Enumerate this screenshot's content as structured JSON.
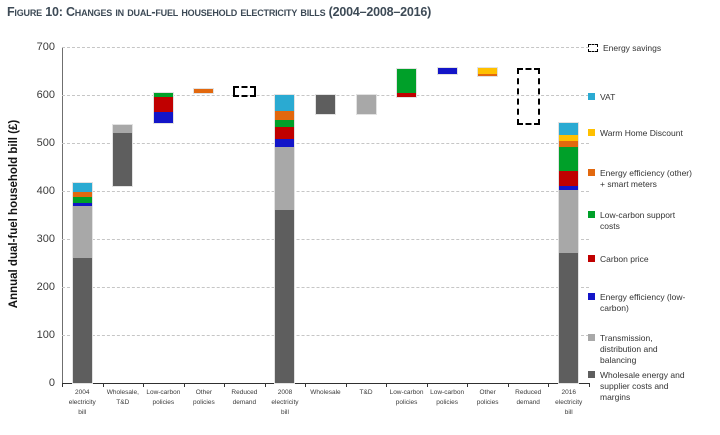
{
  "chart_data": {
    "type": "bar",
    "variant": "stacked-waterfall",
    "title": "Figure 10: Changes in dual-fuel household electricity bills (2004–2008–2016)",
    "ylabel": "Annual dual-fuel household bill (£)",
    "ylim": [
      0,
      700
    ],
    "yticks": [
      0,
      100,
      200,
      300,
      400,
      500,
      600,
      700
    ],
    "grid": "horizontal-dashed",
    "legend_position": "right",
    "colors": {
      "wholesale": "#5e5e5e",
      "transmission": "#a8a8a8",
      "ee_low_carbon": "#1315c8",
      "carbon_price": "#c00000",
      "low_carbon_support": "#00a029",
      "ee_other": "#e2680e",
      "warm_home_discount": "#ffc000",
      "vat": "#2aaad2"
    },
    "bars": [
      {
        "label_lines": [
          "2004",
          "electricity",
          "bill"
        ],
        "segments": [
          {
            "key": "wholesale",
            "from": 0,
            "to": 260
          },
          {
            "key": "transmission",
            "from": 260,
            "to": 369
          },
          {
            "key": "ee_low_carbon",
            "from": 369,
            "to": 374
          },
          {
            "key": "low_carbon_support",
            "from": 374,
            "to": 387
          },
          {
            "key": "ee_other",
            "from": 387,
            "to": 397
          },
          {
            "key": "vat",
            "from": 397,
            "to": 416
          }
        ]
      },
      {
        "label_lines": [
          "Wholesale,",
          "T&D"
        ],
        "segments": [
          {
            "key": "wholesale",
            "from": 410,
            "to": 520
          },
          {
            "key": "transmission",
            "from": 520,
            "to": 538
          }
        ]
      },
      {
        "label_lines": [
          "Low-carbon",
          "policies"
        ],
        "segments": [
          {
            "key": "ee_low_carbon",
            "from": 542,
            "to": 565
          },
          {
            "key": "carbon_price",
            "from": 565,
            "to": 595
          },
          {
            "key": "low_carbon_support",
            "from": 595,
            "to": 604
          }
        ]
      },
      {
        "label_lines": [
          "Other",
          "policies"
        ],
        "segments": [
          {
            "key": "ee_other",
            "from": 604,
            "to": 613
          }
        ]
      },
      {
        "label_lines": [
          "Reduced",
          "demand"
        ],
        "dashed": true,
        "from": 600,
        "to": 615
      },
      {
        "label_lines": [
          "2008",
          "electricity",
          "bill"
        ],
        "segments": [
          {
            "key": "wholesale",
            "from": 0,
            "to": 360
          },
          {
            "key": "transmission",
            "from": 360,
            "to": 492
          },
          {
            "key": "ee_low_carbon",
            "from": 492,
            "to": 508
          },
          {
            "key": "carbon_price",
            "from": 508,
            "to": 533
          },
          {
            "key": "low_carbon_support",
            "from": 533,
            "to": 548
          },
          {
            "key": "ee_other",
            "from": 548,
            "to": 567
          },
          {
            "key": "vat",
            "from": 567,
            "to": 600
          }
        ]
      },
      {
        "label_lines": [
          "Wholesale"
        ],
        "segments": [
          {
            "key": "wholesale",
            "from": 560,
            "to": 599
          }
        ]
      },
      {
        "label_lines": [
          "T&D"
        ],
        "segments": [
          {
            "key": "transmission",
            "from": 560,
            "to": 600
          }
        ]
      },
      {
        "label_lines": [
          "Low-carbon",
          "policies"
        ],
        "segments": [
          {
            "key": "carbon_price",
            "from": 595,
            "to": 604
          },
          {
            "key": "low_carbon_support",
            "from": 604,
            "to": 654
          }
        ]
      },
      {
        "label_lines": [
          "Low-carbon",
          "policies"
        ],
        "segments": [
          {
            "key": "ee_low_carbon",
            "from": 643,
            "to": 656
          }
        ]
      },
      {
        "label_lines": [
          "Other",
          "policies"
        ],
        "segments": [
          {
            "key": "ee_other",
            "from": 639,
            "to": 644
          },
          {
            "key": "warm_home_discount",
            "from": 644,
            "to": 656
          }
        ]
      },
      {
        "label_lines": [
          "Reduced",
          "demand"
        ],
        "dashed": true,
        "from": 541,
        "to": 653
      },
      {
        "label_lines": [
          "2016",
          "electricity",
          "bill"
        ],
        "segments": [
          {
            "key": "wholesale",
            "from": 0,
            "to": 270
          },
          {
            "key": "transmission",
            "from": 270,
            "to": 402
          },
          {
            "key": "ee_low_carbon",
            "from": 402,
            "to": 410
          },
          {
            "key": "carbon_price",
            "from": 410,
            "to": 442
          },
          {
            "key": "low_carbon_support",
            "from": 442,
            "to": 492
          },
          {
            "key": "ee_other",
            "from": 492,
            "to": 505
          },
          {
            "key": "warm_home_discount",
            "from": 505,
            "to": 517
          },
          {
            "key": "vat",
            "from": 517,
            "to": 542
          }
        ]
      }
    ],
    "legend": [
      {
        "key": "energy_savings",
        "label": "Energy savings",
        "swatch": "dashed"
      },
      {
        "key": "vat",
        "label": "VAT",
        "swatch": "square"
      },
      {
        "key": "warm_home_discount",
        "label": "Warm Home Discount",
        "swatch": "square"
      },
      {
        "key": "ee_other",
        "label": "Energy efficiency (other) + smart meters",
        "swatch": "square"
      },
      {
        "key": "low_carbon_support",
        "label": "Low-carbon support costs",
        "swatch": "square"
      },
      {
        "key": "carbon_price",
        "label": "Carbon price",
        "swatch": "square"
      },
      {
        "key": "ee_low_carbon",
        "label": "Energy efficiency (low-carbon)",
        "swatch": "square"
      },
      {
        "key": "transmission",
        "label": "Transmission, distribution and balancing",
        "swatch": "square"
      },
      {
        "key": "wholesale",
        "label": "Wholesale energy and supplier costs and margins",
        "swatch": "square"
      }
    ]
  }
}
